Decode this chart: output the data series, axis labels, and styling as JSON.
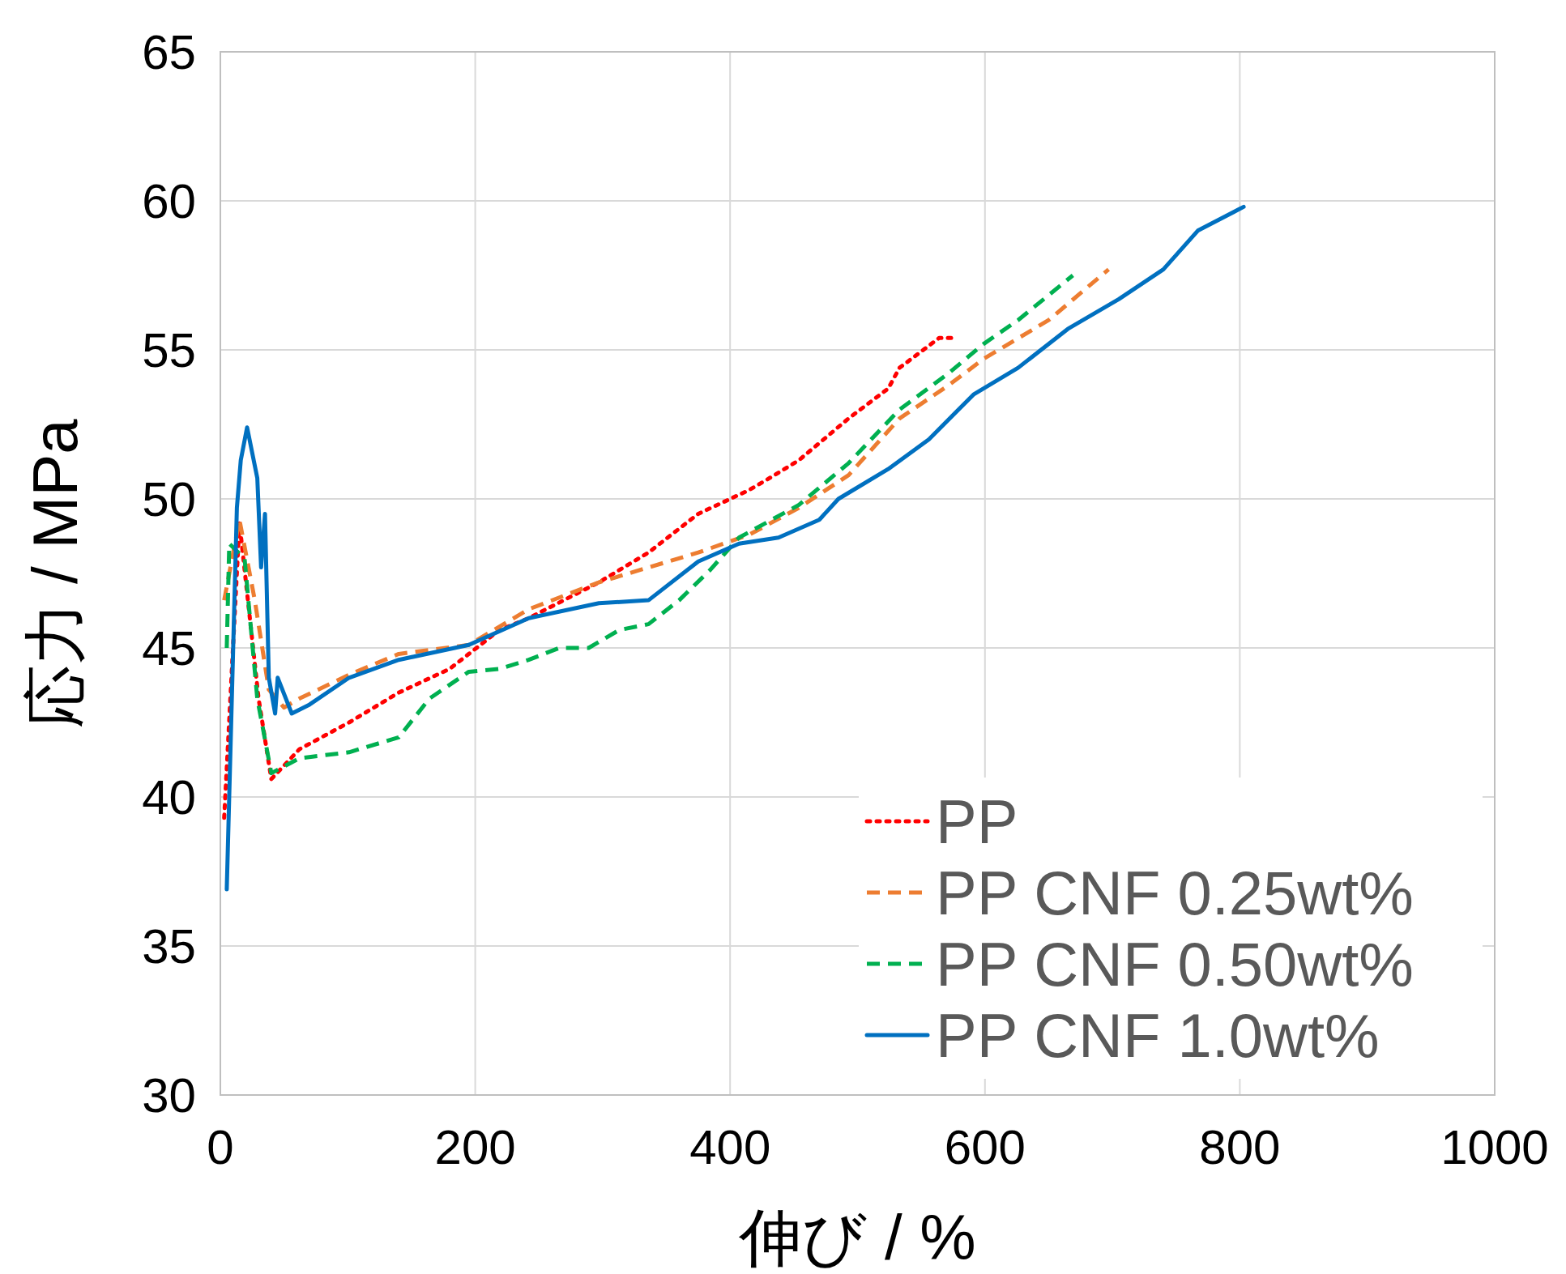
{
  "chart_data": {
    "type": "line",
    "xlabel": "伸び / %",
    "ylabel": "応力 / MPa",
    "xlim": [
      0,
      1000
    ],
    "ylim": [
      30,
      65
    ],
    "xticks": [
      0,
      200,
      400,
      600,
      800,
      1000
    ],
    "yticks": [
      30,
      35,
      40,
      45,
      50,
      55,
      60,
      65
    ],
    "grid": true,
    "legend": "bottom right",
    "series": [
      {
        "name": "PP",
        "color": "#ff0000",
        "line_style": "dotted",
        "x": [
          3,
          15,
          30,
          40,
          62,
          101,
          140,
          180,
          219,
          242,
          297,
          336,
          375,
          415,
          431,
          454,
          493,
          524,
          533,
          564,
          575
        ],
        "values": [
          39.3,
          49.2,
          43.3,
          40.6,
          41.6,
          42.5,
          43.5,
          44.3,
          45.6,
          46.0,
          47.2,
          48.2,
          49.5,
          50.3,
          50.7,
          51.3,
          52.7,
          53.7,
          54.4,
          55.4,
          55.4
        ]
      },
      {
        "name": "PP CNF 0.25wt%",
        "color": "#ed7d31",
        "line_style": "dashed",
        "x": [
          3,
          15,
          27,
          38,
          50,
          62,
          101,
          140,
          195,
          242,
          297,
          336,
          375,
          415,
          454,
          493,
          533,
          571,
          599,
          650,
          697
        ],
        "values": [
          46.6,
          49.3,
          46.6,
          43.6,
          43.0,
          43.3,
          44.1,
          44.8,
          45.1,
          46.3,
          47.2,
          47.7,
          48.2,
          48.8,
          49.7,
          50.8,
          52.7,
          53.8,
          54.7,
          56.0,
          57.7
        ]
      },
      {
        "name": "PP CNF 0.50wt%",
        "color": "#00b050",
        "line_style": "dashed",
        "x": [
          5,
          7,
          19,
          29,
          40,
          62,
          101,
          140,
          164,
          195,
          219,
          242,
          266,
          289,
          313,
          336,
          360,
          384,
          407,
          454,
          493,
          533,
          571,
          599,
          626,
          669
        ],
        "values": [
          45.0,
          48.5,
          48.0,
          43.3,
          40.8,
          41.3,
          41.5,
          42.0,
          43.3,
          44.2,
          44.3,
          44.6,
          45.0,
          45.0,
          45.6,
          45.8,
          46.6,
          47.6,
          48.7,
          49.8,
          51.2,
          53.0,
          54.2,
          55.2,
          56.0,
          57.5
        ]
      },
      {
        "name": "PP CNF 1.0wt%",
        "color": "#0070c0",
        "line_style": "solid",
        "x": [
          5,
          13,
          16,
          21,
          29,
          32,
          35,
          38,
          43,
          45,
          56,
          70,
          101,
          140,
          195,
          242,
          297,
          336,
          375,
          407,
          438,
          470,
          485,
          524,
          556,
          591,
          626,
          665,
          705,
          740,
          767,
          803
        ],
        "values": [
          36.9,
          49.7,
          51.3,
          52.4,
          50.7,
          47.7,
          49.5,
          44.0,
          42.8,
          44.0,
          42.8,
          43.1,
          44.0,
          44.6,
          45.1,
          46.0,
          46.5,
          46.6,
          47.9,
          48.5,
          48.7,
          49.3,
          50.0,
          51.0,
          52.0,
          53.5,
          54.4,
          55.7,
          56.7,
          57.7,
          59.0,
          59.8
        ]
      }
    ]
  }
}
